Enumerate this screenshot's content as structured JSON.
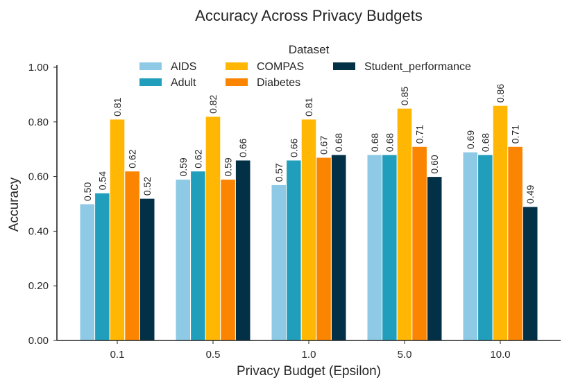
{
  "chart_data": {
    "type": "bar",
    "title": "Accuracy Across Privacy Budgets",
    "xlabel": "Privacy Budget (Epsilon)",
    "ylabel": "Accuracy",
    "ylim": [
      0,
      1.0
    ],
    "yticks": [
      "0.00",
      "0.20",
      "0.40",
      "0.60",
      "0.80",
      "1.00"
    ],
    "categories": [
      "0.1",
      "0.5",
      "1.0",
      "5.0",
      "10.0"
    ],
    "grid": false,
    "legend": {
      "title": "Dataset",
      "placement": "top-center",
      "columns": 3
    },
    "series": [
      {
        "name": "AIDS",
        "color": "#8ecae6",
        "values": [
          0.5,
          0.59,
          0.57,
          0.68,
          0.69
        ]
      },
      {
        "name": "Adult",
        "color": "#219ebc",
        "values": [
          0.54,
          0.62,
          0.66,
          0.68,
          0.68
        ]
      },
      {
        "name": "COMPAS",
        "color": "#ffb703",
        "values": [
          0.81,
          0.82,
          0.81,
          0.85,
          0.86
        ]
      },
      {
        "name": "Diabetes",
        "color": "#fb8500",
        "values": [
          0.62,
          0.59,
          0.67,
          0.71,
          0.71
        ]
      },
      {
        "name": "Student_performance",
        "color": "#023047",
        "values": [
          0.52,
          0.66,
          0.68,
          0.6,
          0.49
        ]
      }
    ]
  }
}
